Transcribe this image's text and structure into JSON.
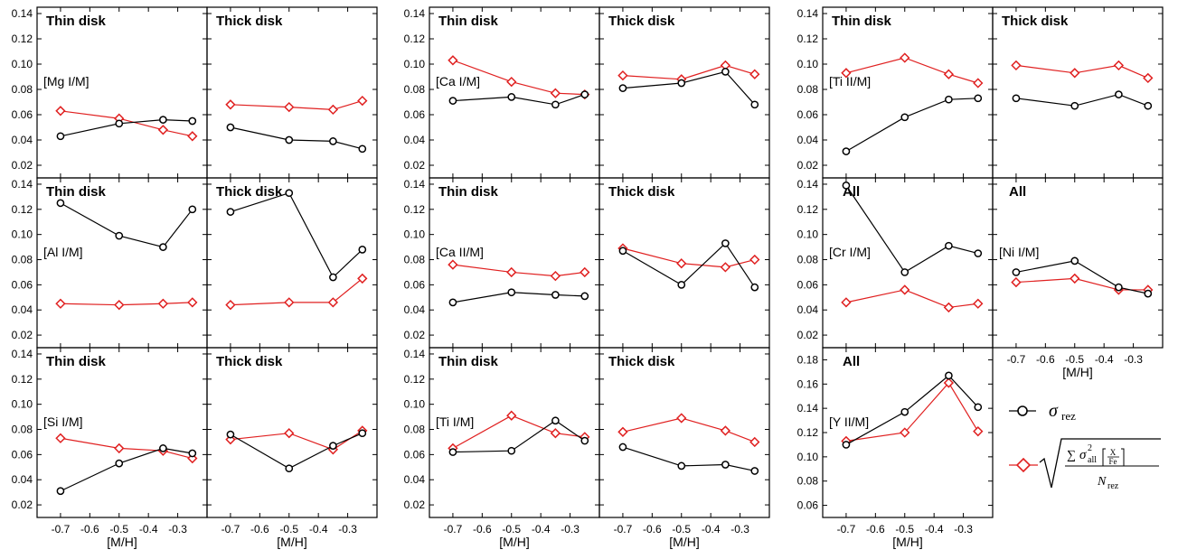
{
  "chart_data": {
    "type": "line",
    "x_values": [
      -0.7,
      -0.5,
      -0.35,
      -0.25
    ],
    "x_ticks": [
      "-0.7",
      "-0.6",
      "-0.5",
      "-0.4",
      "-0.3"
    ],
    "xlabel": "[M/H]",
    "xlim": [
      -0.78,
      -0.2
    ],
    "series_colors": {
      "sigma_rez": "#000000",
      "sigma_all": "#e02020"
    },
    "legend": {
      "sigma_rez": "σ rez",
      "sigma_all": "√( Σ σ²all[X/Fe] / N rez )"
    },
    "panels": [
      {
        "id": "mg-thin",
        "title": "Thin disk",
        "element": "[Mg I/M]",
        "sigma_rez": [
          0.043,
          0.053,
          0.056,
          0.055
        ],
        "sigma_all": [
          0.063,
          0.057,
          0.048,
          0.043
        ]
      },
      {
        "id": "mg-thick",
        "title": "Thick disk",
        "element": "",
        "sigma_rez": [
          0.05,
          0.04,
          0.039,
          0.033
        ],
        "sigma_all": [
          0.068,
          0.066,
          0.064,
          0.071
        ]
      },
      {
        "id": "al-thin",
        "title": "Thin disk",
        "element": "[Al I/M]",
        "sigma_rez": [
          0.125,
          0.099,
          0.09,
          0.12
        ],
        "sigma_all": [
          0.045,
          0.044,
          0.045,
          0.046
        ]
      },
      {
        "id": "al-thick",
        "title": "Thick disk",
        "element": "",
        "sigma_rez": [
          0.118,
          0.133,
          0.066,
          0.088
        ],
        "sigma_all": [
          0.044,
          0.046,
          0.046,
          0.065
        ]
      },
      {
        "id": "si-thin",
        "title": "Thin disk",
        "element": "[Si I/M]",
        "sigma_rez": [
          0.031,
          0.053,
          0.065,
          0.061
        ],
        "sigma_all": [
          0.073,
          0.065,
          0.063,
          0.057
        ]
      },
      {
        "id": "si-thick",
        "title": "Thick disk",
        "element": "",
        "sigma_rez": [
          0.076,
          0.049,
          0.067,
          0.077
        ],
        "sigma_all": [
          0.072,
          0.077,
          0.064,
          0.079
        ]
      },
      {
        "id": "ca-thin",
        "title": "Thin disk",
        "element": "[Ca I/M]",
        "sigma_rez": [
          0.071,
          0.074,
          0.068,
          0.076
        ],
        "sigma_all": [
          0.103,
          0.086,
          0.077,
          0.076
        ]
      },
      {
        "id": "ca-thick",
        "title": "Thick disk",
        "element": "",
        "sigma_rez": [
          0.081,
          0.085,
          0.094,
          0.068
        ],
        "sigma_all": [
          0.091,
          0.088,
          0.099,
          0.092
        ]
      },
      {
        "id": "ca2-thin",
        "title": "Thin disk",
        "element": "[Ca II/M]",
        "sigma_rez": [
          0.046,
          0.054,
          0.052,
          0.051
        ],
        "sigma_all": [
          0.076,
          0.07,
          0.067,
          0.07
        ]
      },
      {
        "id": "ca2-thick",
        "title": "Thick disk",
        "element": "",
        "sigma_rez": [
          0.087,
          0.06,
          0.093,
          0.058
        ],
        "sigma_all": [
          0.089,
          0.077,
          0.074,
          0.08
        ]
      },
      {
        "id": "ti-thin",
        "title": "Thin disk",
        "element": "[Ti I/M]",
        "sigma_rez": [
          0.062,
          0.063,
          0.087,
          0.071
        ],
        "sigma_all": [
          0.065,
          0.091,
          0.077,
          0.074
        ]
      },
      {
        "id": "ti-thick",
        "title": "Thick disk",
        "element": "",
        "sigma_rez": [
          0.066,
          0.051,
          0.052,
          0.047
        ],
        "sigma_all": [
          0.078,
          0.089,
          0.079,
          0.07
        ]
      },
      {
        "id": "ti2-thin",
        "title": "Thin disk",
        "element": "[Ti II/M]",
        "sigma_rez": [
          0.031,
          0.058,
          0.072,
          0.073
        ],
        "sigma_all": [
          0.093,
          0.105,
          0.092,
          0.085
        ]
      },
      {
        "id": "ti2-thick",
        "title": "Thick disk",
        "element": "",
        "sigma_rez": [
          0.073,
          0.067,
          0.076,
          0.067
        ],
        "sigma_all": [
          0.099,
          0.093,
          0.099,
          0.089
        ]
      },
      {
        "id": "cr-all",
        "title": "All",
        "element": "[Cr I/M]",
        "sigma_rez": [
          0.139,
          0.07,
          0.091,
          0.085
        ],
        "sigma_all": [
          0.046,
          0.056,
          0.042,
          0.045
        ]
      },
      {
        "id": "ni-all",
        "title": "All",
        "element": "[Ni I/M]",
        "sigma_rez": [
          0.07,
          0.079,
          0.058,
          0.053
        ],
        "sigma_all": [
          0.062,
          0.065,
          0.056,
          0.056
        ]
      },
      {
        "id": "y-all",
        "title": "All",
        "element": "[Y II/M]",
        "sigma_rez": [
          0.11,
          0.137,
          0.167,
          0.141
        ],
        "sigma_all": [
          0.113,
          0.12,
          0.161,
          0.121
        ]
      }
    ],
    "y_ranges": {
      "standard": {
        "ylim": [
          0.01,
          0.145
        ],
        "ticks": [
          "0.02",
          "0.04",
          "0.06",
          "0.08",
          "0.10",
          "0.12",
          "0.14"
        ]
      },
      "y_panel": {
        "ylim": [
          0.05,
          0.19
        ],
        "ticks": [
          "0.06",
          "0.08",
          "0.10",
          "0.12",
          "0.14",
          "0.16",
          "0.18"
        ]
      }
    }
  }
}
